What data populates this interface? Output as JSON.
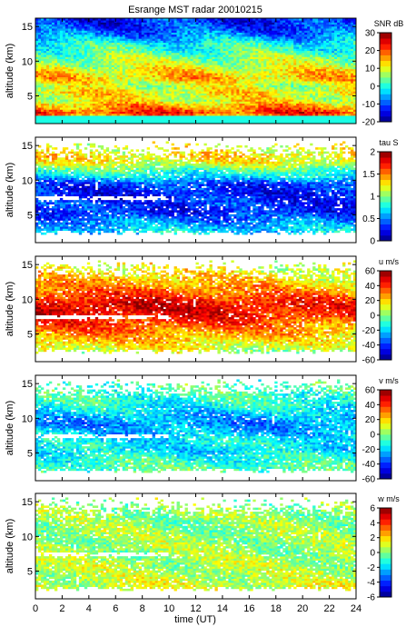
{
  "title": "Esrange MST radar 20010215",
  "xlabel": "time (UT)",
  "colors": {
    "colormap": "jet",
    "no_data": "#ffffff",
    "grid": "none"
  },
  "chart_data": [
    {
      "type": "heatmap",
      "quantity": "SNR",
      "colorbar_label": "SNR dB",
      "xlabel": "",
      "ylabel": "altitude (km)",
      "xlim": [
        0,
        24
      ],
      "ylim": [
        1,
        16.2
      ],
      "xticks": [
        "0",
        "2",
        "4",
        "6",
        "8",
        "10",
        "12",
        "14",
        "16",
        "18",
        "20",
        "22",
        "24"
      ],
      "yticks": [
        "5",
        "10",
        "15"
      ],
      "clim": [
        -20,
        30
      ],
      "colorbar_ticks": [
        "30",
        "20",
        "10",
        "0",
        "-10",
        "-20"
      ],
      "z_profile": {
        "altitude_km": [
          1.5,
          2.5,
          3.5,
          4.5,
          5.5,
          6.5,
          7.5,
          8.5,
          9.5,
          10.5,
          11.5,
          12.5,
          13.5,
          14.5,
          15.5
        ],
        "typical_value": [
          0,
          22,
          16,
          10,
          12,
          8,
          14,
          12,
          8,
          6,
          2,
          0,
          -6,
          -10,
          -12
        ]
      }
    },
    {
      "type": "heatmap",
      "quantity": "tau",
      "colorbar_label": "tau S",
      "xlabel": "",
      "ylabel": "altitude (km)",
      "xlim": [
        0,
        24
      ],
      "ylim": [
        1,
        16.2
      ],
      "xticks": [
        "0",
        "2",
        "4",
        "6",
        "8",
        "10",
        "12",
        "14",
        "16",
        "18",
        "20",
        "22",
        "24"
      ],
      "yticks": [
        "5",
        "10",
        "15"
      ],
      "clim": [
        0,
        2
      ],
      "colorbar_ticks": [
        "2",
        "1.5",
        "1",
        "0.5",
        "0"
      ],
      "z_profile": {
        "altitude_km": [
          2.5,
          3.5,
          4.5,
          5.5,
          6.5,
          7.5,
          8.5,
          9.5,
          10.5,
          11.5,
          12.5,
          13.5,
          14.5
        ],
        "typical_value": [
          0.7,
          0.6,
          0.45,
          0.3,
          0.35,
          0.3,
          0.3,
          0.35,
          0.7,
          0.9,
          1.2,
          1.3,
          1.2
        ]
      }
    },
    {
      "type": "heatmap",
      "quantity": "u",
      "colorbar_label": "u m/s",
      "xlabel": "",
      "ylabel": "altitude (km)",
      "xlim": [
        0,
        24
      ],
      "ylim": [
        1,
        16.2
      ],
      "xticks": [
        "0",
        "2",
        "4",
        "6",
        "8",
        "10",
        "12",
        "14",
        "16",
        "18",
        "20",
        "22",
        "24"
      ],
      "yticks": [
        "5",
        "10",
        "15"
      ],
      "clim": [
        -60,
        60
      ],
      "colorbar_ticks": [
        "60",
        "40",
        "20",
        "0",
        "-20",
        "-40",
        "-60"
      ],
      "z_profile": {
        "altitude_km": [
          2.5,
          3.5,
          4.5,
          5.5,
          6.5,
          7.5,
          8.5,
          9.5,
          10.5,
          11.5,
          12.5,
          13.5,
          14.5
        ],
        "typical_value": [
          10,
          18,
          25,
          32,
          38,
          45,
          50,
          48,
          40,
          32,
          25,
          20,
          15
        ]
      }
    },
    {
      "type": "heatmap",
      "quantity": "v",
      "colorbar_label": "v m/s",
      "xlabel": "",
      "ylabel": "altitude (km)",
      "xlim": [
        0,
        24
      ],
      "ylim": [
        1,
        16.2
      ],
      "xticks": [
        "0",
        "2",
        "4",
        "6",
        "8",
        "10",
        "12",
        "14",
        "16",
        "18",
        "20",
        "22",
        "24"
      ],
      "yticks": [
        "5",
        "10",
        "15"
      ],
      "clim": [
        -60,
        60
      ],
      "colorbar_ticks": [
        "60",
        "40",
        "20",
        "0",
        "-20",
        "-40",
        "-60"
      ],
      "z_profile": {
        "altitude_km": [
          2.5,
          3.5,
          4.5,
          5.5,
          6.5,
          7.5,
          8.5,
          9.5,
          10.5,
          11.5,
          12.5,
          13.5,
          14.5
        ],
        "typical_value": [
          -5,
          -8,
          -12,
          -18,
          -15,
          -20,
          -25,
          -28,
          -22,
          -15,
          -10,
          -8,
          -5
        ]
      }
    },
    {
      "type": "heatmap",
      "quantity": "w",
      "colorbar_label": "w m/s",
      "xlabel": "time (UT)",
      "ylabel": "altitude (km)",
      "xlim": [
        0,
        24
      ],
      "ylim": [
        1,
        16.2
      ],
      "xticks": [
        "0",
        "2",
        "4",
        "6",
        "8",
        "10",
        "12",
        "14",
        "16",
        "18",
        "20",
        "22",
        "24"
      ],
      "yticks": [
        "5",
        "10",
        "15"
      ],
      "clim": [
        -6,
        6
      ],
      "colorbar_ticks": [
        "6",
        "4",
        "2",
        "0",
        "-2",
        "-4",
        "-6"
      ],
      "z_profile": {
        "altitude_km": [
          2.5,
          3.5,
          4.5,
          5.5,
          6.5,
          7.5,
          8.5,
          9.5,
          10.5,
          11.5,
          12.5,
          13.5,
          14.5
        ],
        "typical_value": [
          1.0,
          0.8,
          0.6,
          0.6,
          0.5,
          0.4,
          0.4,
          0.3,
          0.3,
          0.2,
          0.2,
          0.3,
          0.2
        ]
      }
    }
  ]
}
